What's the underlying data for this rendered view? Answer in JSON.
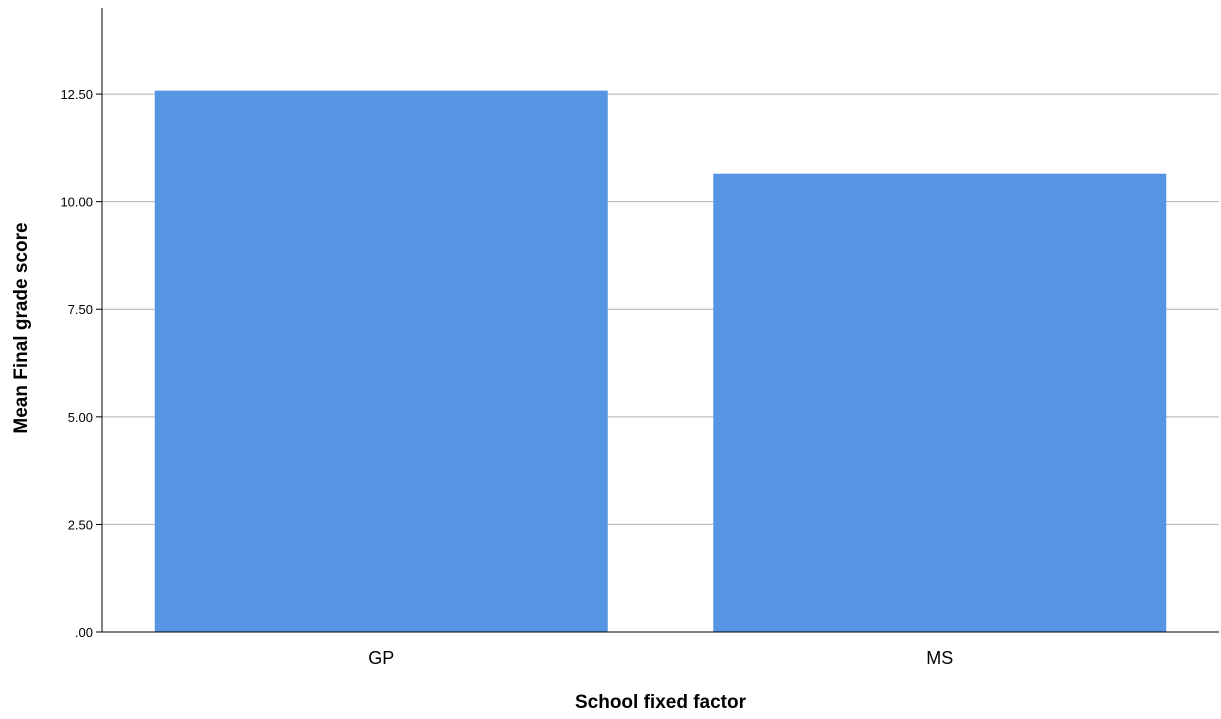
{
  "chart_data": {
    "type": "bar",
    "title": "",
    "xlabel": "School fixed factor",
    "ylabel": "Mean Final grade score",
    "categories": [
      "GP",
      "MS"
    ],
    "series": [
      {
        "values": [
          12.58,
          10.65
        ]
      }
    ],
    "ylim": [
      0,
      14.5
    ],
    "yticks": [
      0,
      2.5,
      5,
      7.5,
      10,
      12.5
    ],
    "ytick_labels": [
      ".00",
      "2.50",
      "5.00",
      "7.50",
      "10.00",
      "12.50"
    ],
    "grid": true,
    "legend": "none",
    "colors": {
      "bar": "#5595e3",
      "grid": "#b0b0b0",
      "axis": "#000000"
    }
  }
}
